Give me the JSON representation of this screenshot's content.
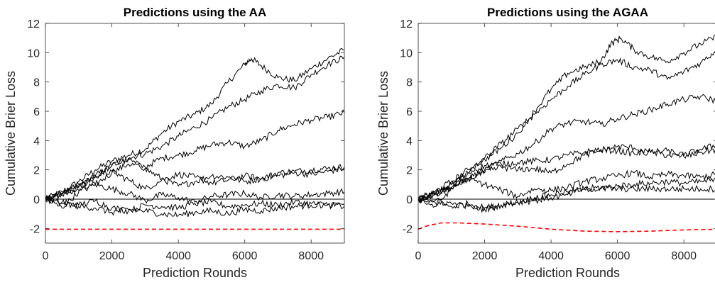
{
  "chart_data": [
    {
      "type": "line",
      "title": "Predictions using the AA",
      "xlabel": "Prediction Rounds",
      "ylabel": "Cumulative Brier Loss",
      "xlim": [
        0,
        9000
      ],
      "ylim": [
        -3,
        12
      ],
      "xticks": [
        0,
        2000,
        4000,
        6000,
        8000
      ],
      "yticks": [
        -2,
        0,
        2,
        4,
        6,
        8,
        10,
        12
      ],
      "grid": false,
      "legend": "none",
      "series": [
        {
          "style": "solid",
          "color": "#000000",
          "x": [
            0,
            500,
            1000,
            1500,
            2000,
            2500,
            3000,
            3500,
            4000,
            4500,
            5000,
            5500,
            6000,
            6200,
            6500,
            7000,
            7500,
            8000,
            8500,
            9000
          ],
          "y": [
            0,
            0.5,
            1.2,
            2.0,
            2.6,
            3.0,
            3.4,
            4.5,
            5.3,
            5.8,
            6.5,
            8.0,
            9.2,
            9.6,
            9.1,
            8.3,
            8.1,
            8.9,
            9.6,
            10.2
          ]
        },
        {
          "style": "solid",
          "color": "#000000",
          "x": [
            0,
            500,
            1000,
            1500,
            2000,
            2500,
            3000,
            3500,
            4000,
            4500,
            5000,
            5500,
            6000,
            6500,
            7000,
            7500,
            8000,
            8500,
            9000
          ],
          "y": [
            0,
            0.3,
            0.9,
            1.6,
            2.3,
            2.8,
            3.1,
            3.6,
            4.3,
            4.9,
            5.5,
            6.3,
            6.8,
            7.4,
            7.8,
            7.6,
            8.5,
            9.2,
            9.7
          ]
        },
        {
          "style": "solid",
          "color": "#000000",
          "x": [
            0,
            500,
            1000,
            1500,
            2000,
            2500,
            3000,
            3500,
            4000,
            4500,
            5000,
            5500,
            6000,
            6500,
            7000,
            7500,
            8000,
            8500,
            9000
          ],
          "y": [
            0,
            0.4,
            0.6,
            1.0,
            1.8,
            2.4,
            2.2,
            2.8,
            3.0,
            3.3,
            3.7,
            3.9,
            3.6,
            4.0,
            4.7,
            5.1,
            5.4,
            5.6,
            5.9
          ]
        },
        {
          "style": "solid",
          "color": "#000000",
          "x": [
            0,
            500,
            1000,
            1500,
            2000,
            2500,
            3000,
            3500,
            4000,
            4500,
            5000,
            5500,
            6000,
            6500,
            7000,
            7500,
            8000,
            8500,
            9000
          ],
          "y": [
            0,
            0.3,
            0.8,
            1.5,
            2.3,
            2.7,
            2.1,
            1.4,
            0.9,
            1.2,
            1.6,
            1.5,
            1.2,
            1.4,
            1.8,
            1.9,
            2.0,
            2.1,
            2.2
          ]
        },
        {
          "style": "solid",
          "color": "#000000",
          "x": [
            0,
            500,
            1000,
            1500,
            2000,
            2500,
            3000,
            3500,
            4000,
            4500,
            5000,
            5500,
            6000,
            6500,
            7000,
            7500,
            8000,
            8500,
            9000
          ],
          "y": [
            0,
            0.4,
            1.0,
            1.6,
            1.9,
            1.3,
            0.7,
            1.3,
            1.7,
            1.5,
            1.1,
            1.3,
            1.6,
            1.4,
            1.6,
            1.8,
            1.7,
            1.9,
            2.1
          ]
        },
        {
          "style": "solid",
          "color": "#000000",
          "x": [
            0,
            500,
            1000,
            1500,
            2000,
            2500,
            3000,
            3500,
            4000,
            4500,
            5000,
            5500,
            6000,
            6500,
            7000,
            7500,
            8000,
            8500,
            9000
          ],
          "y": [
            0,
            -0.6,
            0.5,
            1.0,
            0.7,
            0.4,
            -0.1,
            0.3,
            0.1,
            -0.2,
            0.2,
            0.3,
            0.4,
            0.1,
            0.3,
            0.2,
            0.3,
            0.4,
            0.5
          ]
        },
        {
          "style": "solid",
          "color": "#000000",
          "x": [
            0,
            500,
            1000,
            1500,
            2000,
            2500,
            3000,
            3500,
            4000,
            4500,
            5000,
            5500,
            6000,
            6500,
            7000,
            7500,
            8000,
            8500,
            9000
          ],
          "y": [
            0,
            -0.3,
            -0.4,
            -0.1,
            -0.6,
            -0.8,
            -0.4,
            -0.5,
            -0.6,
            -0.3,
            -0.2,
            -0.5,
            -0.4,
            -0.3,
            -0.4,
            -0.2,
            -0.3,
            -0.4,
            -0.3
          ]
        },
        {
          "style": "solid",
          "color": "#000000",
          "x": [
            0,
            500,
            1000,
            1500,
            2000,
            2500,
            3000,
            3500,
            4000,
            4500,
            5000,
            5500,
            6000,
            6500,
            7000,
            7500,
            8000,
            8500,
            9000
          ],
          "y": [
            0,
            -0.2,
            -0.5,
            -0.6,
            -0.9,
            -0.7,
            -0.8,
            -1.0,
            -1.1,
            -0.9,
            -0.8,
            -1.0,
            -0.7,
            -0.8,
            -0.6,
            -0.5,
            -0.4,
            -0.4,
            -0.5
          ]
        },
        {
          "style": "solid",
          "color": "#000000",
          "x": [
            0,
            9000
          ],
          "y": [
            0,
            0
          ]
        },
        {
          "style": "dashed",
          "color": "#ff0000",
          "x": [
            0,
            9000
          ],
          "y": [
            -2.05,
            -2.05
          ]
        }
      ]
    },
    {
      "type": "line",
      "title": "Predictions using the AGAA",
      "xlabel": "Prediction Rounds",
      "ylabel": "Cumulative Brier Loss",
      "xlim": [
        0,
        9000
      ],
      "ylim": [
        -3,
        12
      ],
      "xticks": [
        0,
        2000,
        4000,
        6000,
        8000
      ],
      "yticks": [
        -2,
        0,
        2,
        4,
        6,
        8,
        10,
        12
      ],
      "grid": false,
      "legend": "none",
      "series": [
        {
          "style": "solid",
          "color": "#000000",
          "x": [
            0,
            500,
            1000,
            1500,
            2000,
            2500,
            3000,
            3500,
            4000,
            4500,
            5000,
            5500,
            5800,
            6100,
            6500,
            7000,
            7500,
            8000,
            8500,
            9000
          ],
          "y": [
            0,
            0.5,
            1.2,
            2.0,
            2.7,
            3.5,
            4.5,
            6.0,
            7.5,
            8.6,
            9.0,
            9.4,
            10.6,
            11.0,
            10.2,
            9.7,
            9.4,
            10.0,
            10.6,
            11.1
          ]
        },
        {
          "style": "solid",
          "color": "#000000",
          "x": [
            0,
            500,
            1000,
            1500,
            2000,
            2500,
            3000,
            3500,
            4000,
            4500,
            5000,
            5500,
            6000,
            6500,
            7000,
            7500,
            8000,
            8500,
            9000
          ],
          "y": [
            0,
            0.3,
            1.0,
            1.8,
            2.8,
            3.8,
            4.8,
            5.8,
            6.8,
            7.7,
            8.5,
            9.2,
            9.5,
            9.0,
            8.8,
            8.2,
            8.7,
            9.3,
            10.2
          ]
        },
        {
          "style": "solid",
          "color": "#000000",
          "x": [
            0,
            500,
            1000,
            1500,
            2000,
            2500,
            3000,
            3500,
            4000,
            4500,
            5000,
            5500,
            6000,
            6500,
            7000,
            7500,
            8000,
            8500,
            9000
          ],
          "y": [
            0,
            0.3,
            0.8,
            1.4,
            2.0,
            2.6,
            3.1,
            3.8,
            4.8,
            5.2,
            5.3,
            5.1,
            5.5,
            5.8,
            6.1,
            6.5,
            6.8,
            7.0,
            6.7
          ]
        },
        {
          "style": "solid",
          "color": "#000000",
          "x": [
            0,
            500,
            1000,
            1500,
            2000,
            2500,
            3000,
            3500,
            4000,
            4500,
            5000,
            5500,
            6000,
            6500,
            7000,
            7500,
            8000,
            8500,
            9000
          ],
          "y": [
            0,
            0.4,
            1.0,
            1.8,
            2.3,
            2.4,
            2.5,
            2.6,
            2.7,
            3.0,
            3.2,
            3.4,
            3.3,
            3.1,
            3.2,
            3.0,
            2.9,
            3.2,
            3.4
          ]
        },
        {
          "style": "solid",
          "color": "#000000",
          "x": [
            0,
            500,
            1000,
            1500,
            2000,
            2500,
            3000,
            3500,
            4000,
            4500,
            5000,
            5500,
            6000,
            6500,
            7000,
            7500,
            8000,
            8500,
            9000
          ],
          "y": [
            0,
            0.3,
            0.8,
            1.4,
            1.8,
            2.2,
            2.0,
            2.1,
            1.8,
            2.4,
            3.0,
            3.3,
            3.6,
            3.5,
            3.2,
            3.3,
            3.0,
            3.4,
            3.7
          ]
        },
        {
          "style": "solid",
          "color": "#000000",
          "x": [
            0,
            500,
            1000,
            1500,
            2000,
            2500,
            3000,
            3500,
            4000,
            4500,
            5000,
            5500,
            6000,
            6500,
            7000,
            7500,
            8000,
            8500,
            9000
          ],
          "y": [
            0,
            -0.5,
            0.7,
            1.4,
            1.0,
            0.6,
            0.2,
            0.7,
            0.6,
            0.8,
            1.2,
            1.4,
            1.6,
            1.8,
            1.5,
            1.7,
            1.6,
            1.5,
            1.7
          ]
        },
        {
          "style": "solid",
          "color": "#000000",
          "x": [
            0,
            500,
            1000,
            1500,
            2000,
            2500,
            3000,
            3500,
            4000,
            4500,
            5000,
            5500,
            6000,
            6500,
            7000,
            7500,
            8000,
            8500,
            9000
          ],
          "y": [
            0,
            -0.2,
            -0.5,
            -0.3,
            -0.6,
            -0.4,
            -0.2,
            -0.1,
            0.1,
            0.3,
            0.7,
            0.8,
            0.9,
            1.0,
            1.1,
            1.2,
            1.1,
            1.2,
            1.3
          ]
        },
        {
          "style": "solid",
          "color": "#000000",
          "x": [
            0,
            500,
            1000,
            1500,
            2000,
            2500,
            3000,
            3500,
            4000,
            4500,
            5000,
            5500,
            6000,
            6500,
            7000,
            7500,
            8000,
            8500,
            9000
          ],
          "y": [
            0,
            -0.1,
            -0.3,
            -0.5,
            -0.7,
            -0.4,
            -0.2,
            0.1,
            0.3,
            0.5,
            0.7,
            0.7,
            0.7,
            0.7,
            0.7,
            0.7,
            0.7,
            0.7,
            0.7
          ]
        },
        {
          "style": "solid",
          "color": "#000000",
          "x": [
            0,
            9000
          ],
          "y": [
            0,
            0
          ]
        },
        {
          "style": "dashed",
          "color": "#ff0000",
          "x": [
            0,
            300,
            700,
            1200,
            2000,
            3000,
            4000,
            5000,
            6000,
            7000,
            8000,
            9000
          ],
          "y": [
            -2.05,
            -1.8,
            -1.62,
            -1.62,
            -1.7,
            -1.85,
            -2.05,
            -2.18,
            -2.22,
            -2.18,
            -2.1,
            -2.05
          ]
        }
      ]
    }
  ]
}
